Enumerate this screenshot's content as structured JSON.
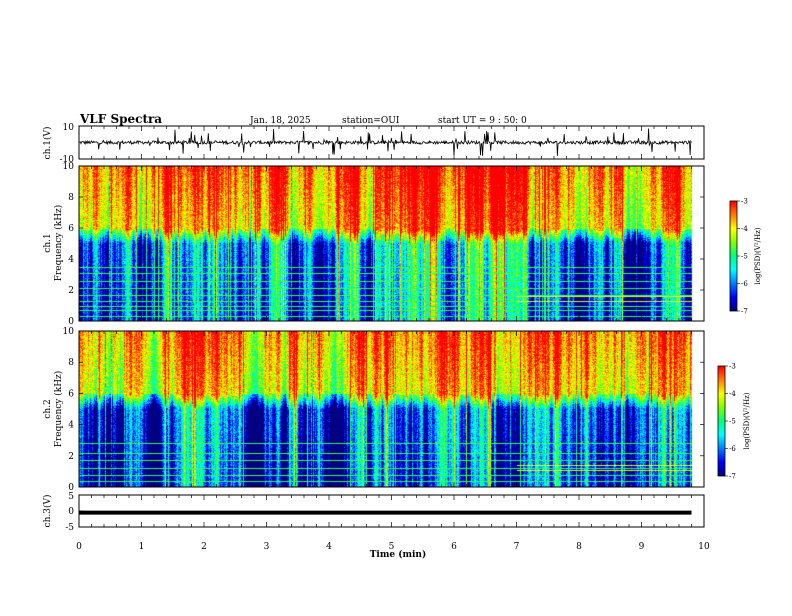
{
  "header": {
    "title": "VLF Spectra",
    "date": "Jan. 18, 2025",
    "station": "station=OUI",
    "start": "start  UT =   9 : 50: 0"
  },
  "chart_data": [
    {
      "type": "line",
      "name": "ch1-waveform",
      "ylabel": "ch.1(V)",
      "ylim": [
        -10,
        10
      ],
      "yticks": [
        "10",
        "-10"
      ],
      "xlim": [
        0,
        10
      ],
      "baseline": 0,
      "noise_amplitude": 2,
      "spike_amplitude": 8,
      "data_end_min": 9.8
    },
    {
      "type": "heatmap",
      "name": "ch1-spectrogram",
      "ylabel": "ch.1\nFrequency (kHz)",
      "ylim": [
        0,
        10
      ],
      "yticks": [
        "0",
        "2",
        "4",
        "6",
        "8",
        "10"
      ],
      "xlim": [
        0,
        10
      ],
      "data_end_min": 9.8,
      "colorbar": {
        "label": "log(PSD)(V²/Hz)",
        "range": [
          -7,
          -3
        ],
        "ticks": [
          "-3",
          "-4",
          "-5",
          "-6",
          "-7"
        ]
      },
      "features": {
        "high_power_above_khz": 6,
        "low_power_below_khz": 5,
        "horizontal_lines_khz": [
          0.3,
          0.7,
          1.0,
          1.3,
          1.7,
          2.1,
          2.6,
          3.1,
          3.5
        ],
        "event_start_min": 7.0,
        "event_band_khz": [
          1.3,
          1.6
        ]
      }
    },
    {
      "type": "heatmap",
      "name": "ch2-spectrogram",
      "ylabel": "ch.2\nFrequency (kHz)",
      "ylim": [
        0,
        10
      ],
      "yticks": [
        "0",
        "2",
        "4",
        "6",
        "8",
        "10"
      ],
      "xlim": [
        0,
        10
      ],
      "data_end_min": 9.8,
      "colorbar": {
        "label": "log(PSD)(V²/Hz)",
        "range": [
          -7,
          -3
        ],
        "ticks": [
          "-3",
          "-4",
          "-5",
          "-6",
          "-7"
        ]
      },
      "features": {
        "high_power_above_khz": 6,
        "low_power_below_khz": 5,
        "horizontal_lines_khz": [
          0.4,
          0.8,
          1.2,
          1.7,
          2.2,
          2.8
        ],
        "event_start_min": 7.0,
        "event_band_khz": [
          1.1,
          1.4
        ]
      }
    },
    {
      "type": "line",
      "name": "ch3-waveform",
      "ylabel": "ch.3(V)",
      "ylim": [
        -5,
        5
      ],
      "yticks": [
        "5",
        "0",
        "-5"
      ],
      "xlim": [
        0,
        10
      ],
      "values_const": -0.5,
      "data_end_min": 9.8
    }
  ],
  "xaxis": {
    "label": "Time (min)",
    "ticks": [
      "0",
      "1",
      "2",
      "3",
      "4",
      "5",
      "6",
      "7",
      "8",
      "9",
      "10"
    ]
  },
  "colormap": [
    "#000080",
    "#0000ff",
    "#0080ff",
    "#00ffff",
    "#00ff80",
    "#80ff00",
    "#ffff00",
    "#ff8000",
    "#ff0000"
  ]
}
